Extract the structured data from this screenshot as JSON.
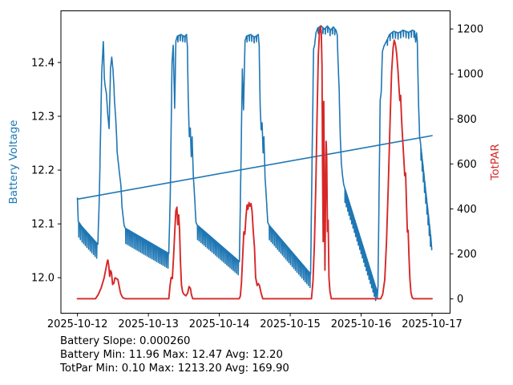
{
  "figure": {
    "background": "#ffffff",
    "caption": {
      "slope_line": "Battery Slope: 0.000260",
      "battery_stats_line": "Battery Min: 11.96 Max: 12.47 Avg: 12.20",
      "totpar_stats_line": "TotPar Min: 0.10 Max: 1213.20 Avg: 169.90"
    }
  },
  "chart_data": {
    "type": "line",
    "title": "",
    "x_axis": {
      "unit": "date",
      "xlim_hours": [
        -5.6,
        126.1
      ],
      "ticks": [
        {
          "t": 0,
          "label": "2025-10-12"
        },
        {
          "t": 24,
          "label": "2025-10-13"
        },
        {
          "t": 48,
          "label": "2025-10-14"
        },
        {
          "t": 72,
          "label": "2025-10-15"
        },
        {
          "t": 96,
          "label": "2025-10-16"
        },
        {
          "t": 120,
          "label": "2025-10-17"
        }
      ]
    },
    "left_axis": {
      "label": "Battery Voltage",
      "color": "#1f77b4",
      "ylim": [
        11.934,
        12.496
      ],
      "ticks": [
        {
          "v": 12.0,
          "label": "12.0"
        },
        {
          "v": 12.1,
          "label": "12.1"
        },
        {
          "v": 12.2,
          "label": "12.2"
        },
        {
          "v": 12.3,
          "label": "12.3"
        },
        {
          "v": 12.4,
          "label": "12.4"
        }
      ]
    },
    "right_axis": {
      "label": "TotPAR",
      "color": "#d62728",
      "ylim": [
        -63.5,
        1280.6
      ],
      "ticks": [
        {
          "v": 0,
          "label": "0"
        },
        {
          "v": 200,
          "label": "200"
        },
        {
          "v": 400,
          "label": "400"
        },
        {
          "v": 600,
          "label": "600"
        },
        {
          "v": 800,
          "label": "800"
        },
        {
          "v": 1000,
          "label": "1000"
        },
        {
          "v": 1200,
          "label": "1200"
        }
      ]
    },
    "stats": {
      "battery_slope": 0.00026,
      "battery_min": 11.96,
      "battery_max": 12.47,
      "battery_avg": 12.2,
      "totpar_min": 0.1,
      "totpar_max": 1213.2,
      "totpar_avg": 169.9
    },
    "series": [
      {
        "name": "battery_voltage",
        "axis": "left",
        "color": "#1f77b4",
        "width": 1.6,
        "keyframes": [
          [
            0,
            12.148
          ],
          [
            0.25,
            12.105
          ],
          [
            1.5,
            12.095
          ],
          [
            6.9,
            12.062
          ],
          [
            7.4,
            12.15
          ],
          [
            8.2,
            12.38
          ],
          [
            8.76,
            12.44
          ],
          [
            9.1,
            12.37
          ],
          [
            9.4,
            12.355
          ],
          [
            9.8,
            12.342
          ],
          [
            10.3,
            12.3
          ],
          [
            10.7,
            12.277
          ],
          [
            11.2,
            12.39
          ],
          [
            11.6,
            12.41
          ],
          [
            12.0,
            12.388
          ],
          [
            12.3,
            12.36
          ],
          [
            12.55,
            12.327
          ],
          [
            12.9,
            12.3
          ],
          [
            13.2,
            12.268
          ],
          [
            13.45,
            12.233
          ],
          [
            13.8,
            12.215
          ],
          [
            14.3,
            12.19
          ],
          [
            14.7,
            12.172
          ],
          [
            15.1,
            12.13
          ],
          [
            15.8,
            12.097
          ],
          [
            16.2,
            12.092
          ],
          [
            30.9,
            12.045
          ],
          [
            31.4,
            12.15
          ],
          [
            32.0,
            12.4
          ],
          [
            32.4,
            12.432
          ],
          [
            32.9,
            12.315
          ],
          [
            33.3,
            12.44
          ],
          [
            33.8,
            12.449
          ],
          [
            35.0,
            12.452
          ],
          [
            36.2,
            12.448
          ],
          [
            36.9,
            12.452
          ],
          [
            37.2,
            12.43
          ],
          [
            37.5,
            12.33
          ],
          [
            37.85,
            12.262
          ],
          [
            38.2,
            12.278
          ],
          [
            38.5,
            12.225
          ],
          [
            38.8,
            12.262
          ],
          [
            39.2,
            12.19
          ],
          [
            39.6,
            12.155
          ],
          [
            40.1,
            12.103
          ],
          [
            40.5,
            12.098
          ],
          [
            54.8,
            12.03
          ],
          [
            55.3,
            12.2
          ],
          [
            55.8,
            12.388
          ],
          [
            56.2,
            12.312
          ],
          [
            56.7,
            12.44
          ],
          [
            57.2,
            12.449
          ],
          [
            58.6,
            12.452
          ],
          [
            59.9,
            12.447
          ],
          [
            61.2,
            12.452
          ],
          [
            61.5,
            12.43
          ],
          [
            61.8,
            12.325
          ],
          [
            62.15,
            12.275
          ],
          [
            62.5,
            12.288
          ],
          [
            62.8,
            12.232
          ],
          [
            63.1,
            12.262
          ],
          [
            63.5,
            12.185
          ],
          [
            63.9,
            12.15
          ],
          [
            64.4,
            12.103
          ],
          [
            64.8,
            12.098
          ],
          [
            78.9,
            12.007
          ],
          [
            79.4,
            12.22
          ],
          [
            79.9,
            12.425
          ],
          [
            80.25,
            12.432
          ],
          [
            80.7,
            12.455
          ],
          [
            81.3,
            12.464
          ],
          [
            82.5,
            12.468
          ],
          [
            83.6,
            12.462
          ],
          [
            84.6,
            12.468
          ],
          [
            85.6,
            12.46
          ],
          [
            86.6,
            12.466
          ],
          [
            87.5,
            12.46
          ],
          [
            87.9,
            12.452
          ],
          [
            88.2,
            12.4
          ],
          [
            88.55,
            12.352
          ],
          [
            88.9,
            12.27
          ],
          [
            89.3,
            12.213
          ],
          [
            89.7,
            12.19
          ],
          [
            90.1,
            12.173
          ],
          [
            90.4,
            12.168
          ],
          [
            101.2,
            11.978
          ],
          [
            101.45,
            11.962
          ],
          [
            101.7,
            11.985
          ],
          [
            102.1,
            12.17
          ],
          [
            102.45,
            12.33
          ],
          [
            102.8,
            12.345
          ],
          [
            103.2,
            12.42
          ],
          [
            103.7,
            12.43
          ],
          [
            104.6,
            12.44
          ],
          [
            105.6,
            12.452
          ],
          [
            107.0,
            12.458
          ],
          [
            108.6,
            12.455
          ],
          [
            110.2,
            12.46
          ],
          [
            112.0,
            12.456
          ],
          [
            113.4,
            12.46
          ],
          [
            114.1,
            12.458
          ],
          [
            114.45,
            12.438
          ],
          [
            114.75,
            12.455
          ],
          [
            115.0,
            12.44
          ],
          [
            115.4,
            12.33
          ],
          [
            115.8,
            12.262
          ],
          [
            116.1,
            12.25
          ],
          [
            119.6,
            12.075
          ],
          [
            119.9,
            12.052
          ]
        ],
        "spike_segments": [
          {
            "t0": 0.4,
            "t1": 6.8,
            "period": 0.55,
            "depth": 0.034
          },
          {
            "t0": 16.3,
            "t1": 30.8,
            "period": 0.55,
            "depth": 0.034
          },
          {
            "t0": 40.6,
            "t1": 54.7,
            "period": 0.55,
            "depth": 0.032
          },
          {
            "t0": 64.9,
            "t1": 78.8,
            "period": 0.55,
            "depth": 0.032
          },
          {
            "t0": 90.5,
            "t1": 101.1,
            "period": 0.45,
            "depth": 0.026
          },
          {
            "t0": 116.2,
            "t1": 119.5,
            "period": 0.4,
            "depth": 0.028
          },
          {
            "t0": 33.9,
            "t1": 36.8,
            "period": 0.8,
            "depth": 0.013
          },
          {
            "t0": 57.3,
            "t1": 61.1,
            "period": 0.8,
            "depth": 0.013
          },
          {
            "t0": 81.4,
            "t1": 87.8,
            "period": 0.8,
            "depth": 0.013
          },
          {
            "t0": 104.8,
            "t1": 114.0,
            "period": 0.9,
            "depth": 0.012
          }
        ]
      },
      {
        "name": "battery_trend",
        "axis": "left",
        "color": "#1f77b4",
        "width": 1.6,
        "keyframes": [
          [
            0,
            12.146
          ],
          [
            120,
            12.264
          ]
        ]
      },
      {
        "name": "totpar",
        "axis": "right",
        "color": "#d62728",
        "width": 1.9,
        "keyframes": [
          [
            0,
            1
          ],
          [
            6.1,
            1
          ],
          [
            7.0,
            18
          ],
          [
            8.0,
            48
          ],
          [
            9.0,
            92
          ],
          [
            9.6,
            132
          ],
          [
            10.1,
            168
          ],
          [
            10.3,
            173
          ],
          [
            10.6,
            148
          ],
          [
            10.9,
            100
          ],
          [
            11.2,
            126
          ],
          [
            11.5,
            118
          ],
          [
            11.9,
            64
          ],
          [
            12.3,
            70
          ],
          [
            12.7,
            94
          ],
          [
            13.2,
            90
          ],
          [
            13.7,
            86
          ],
          [
            14.1,
            58
          ],
          [
            14.6,
            24
          ],
          [
            15.3,
            6
          ],
          [
            16.2,
            1
          ],
          [
            30.9,
            1
          ],
          [
            31.3,
            55
          ],
          [
            31.7,
            95
          ],
          [
            32.1,
            90
          ],
          [
            32.5,
            185
          ],
          [
            32.9,
            290
          ],
          [
            33.3,
            392
          ],
          [
            33.65,
            408
          ],
          [
            33.95,
            330
          ],
          [
            34.25,
            374
          ],
          [
            34.55,
            308
          ],
          [
            34.85,
            168
          ],
          [
            35.2,
            62
          ],
          [
            35.6,
            30
          ],
          [
            36.1,
            20
          ],
          [
            36.7,
            14
          ],
          [
            37.3,
            26
          ],
          [
            37.75,
            55
          ],
          [
            38.2,
            48
          ],
          [
            38.6,
            18
          ],
          [
            39.0,
            1
          ],
          [
            54.7,
            1
          ],
          [
            55.1,
            12
          ],
          [
            55.5,
            70
          ],
          [
            55.9,
            185
          ],
          [
            56.3,
            298
          ],
          [
            56.65,
            288
          ],
          [
            57.0,
            362
          ],
          [
            57.4,
            418
          ],
          [
            57.7,
            398
          ],
          [
            58.05,
            428
          ],
          [
            58.4,
            412
          ],
          [
            58.75,
            424
          ],
          [
            59.1,
            388
          ],
          [
            59.5,
            298
          ],
          [
            59.9,
            228
          ],
          [
            60.3,
            96
          ],
          [
            60.8,
            60
          ],
          [
            61.2,
            68
          ],
          [
            61.6,
            60
          ],
          [
            62.1,
            28
          ],
          [
            62.7,
            1
          ],
          [
            79.2,
            1
          ],
          [
            79.7,
            80
          ],
          [
            80.2,
            250
          ],
          [
            80.7,
            520
          ],
          [
            81.1,
            820
          ],
          [
            81.5,
            1080
          ],
          [
            81.9,
            1190
          ],
          [
            82.2,
            1213
          ],
          [
            82.5,
            1185
          ],
          [
            82.75,
            1040
          ],
          [
            82.95,
            590
          ],
          [
            83.15,
            255
          ],
          [
            83.35,
            878
          ],
          [
            83.55,
            545
          ],
          [
            83.75,
            128
          ],
          [
            83.95,
            420
          ],
          [
            84.15,
            700
          ],
          [
            84.35,
            628
          ],
          [
            84.6,
            300
          ],
          [
            84.85,
            350
          ],
          [
            85.1,
            95
          ],
          [
            85.45,
            35
          ],
          [
            85.9,
            1
          ],
          [
            102.6,
            1
          ],
          [
            103.3,
            20
          ],
          [
            104.0,
            85
          ],
          [
            104.6,
            255
          ],
          [
            105.2,
            515
          ],
          [
            105.8,
            795
          ],
          [
            106.3,
            1005
          ],
          [
            106.8,
            1115
          ],
          [
            107.2,
            1150
          ],
          [
            107.6,
            1132
          ],
          [
            108.0,
            1092
          ],
          [
            108.45,
            1020
          ],
          [
            108.8,
            942
          ],
          [
            109.1,
            882
          ],
          [
            109.35,
            905
          ],
          [
            109.7,
            798
          ],
          [
            110.1,
            700
          ],
          [
            110.45,
            622
          ],
          [
            110.75,
            548
          ],
          [
            111.05,
            560
          ],
          [
            111.35,
            425
          ],
          [
            111.65,
            298
          ],
          [
            111.9,
            305
          ],
          [
            112.2,
            182
          ],
          [
            112.5,
            88
          ],
          [
            112.85,
            28
          ],
          [
            113.3,
            5
          ],
          [
            113.8,
            1
          ],
          [
            120,
            1
          ]
        ]
      }
    ]
  }
}
